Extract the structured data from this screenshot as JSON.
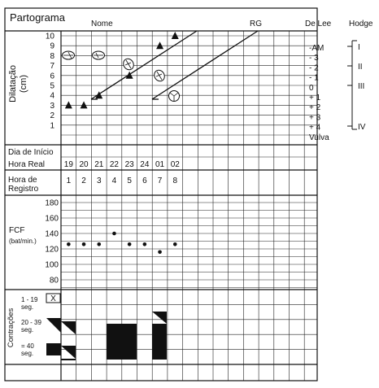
{
  "header": {
    "title": "Partograma",
    "nome_label": "Nome",
    "rg_label": "RG",
    "delee_label": "De Lee",
    "hodge_label": "Hodge"
  },
  "dilatation": {
    "axis_label_line1": "Dilatação",
    "axis_label_line2": "(cm)",
    "ticks": [
      "10",
      "9",
      "8",
      "7",
      "6",
      "5",
      "4",
      "3",
      "2",
      "1"
    ]
  },
  "delee_scale": [
    "-AM",
    "- 3",
    "- 2",
    "- 1",
    "0",
    "+ 1",
    "+ 2",
    "+ 3",
    "+ 4",
    "Vulva"
  ],
  "hodge_scale": [
    "I",
    "II",
    "III",
    "IV"
  ],
  "rows": {
    "dia_inicio_label": "Dia de Início",
    "hora_real_label": "Hora Real",
    "hora_real_values": [
      "19",
      "20",
      "21",
      "22",
      "23",
      "24",
      "01",
      "02"
    ],
    "hora_registro_label_line1": "Hora de",
    "hora_registro_label_line2": "Registro",
    "hora_registro_values": [
      "1",
      "2",
      "3",
      "4",
      "5",
      "6",
      "7",
      "8"
    ]
  },
  "fcf": {
    "label": "FCF",
    "unit": "(bat/min.)",
    "ticks": [
      "180",
      "160",
      "140",
      "120",
      "100",
      "80"
    ]
  },
  "contractions": {
    "axis_label": "Contrações",
    "legend_1_line1": "1 - 19",
    "legend_1_line2": "seg.",
    "legend_1_mark": "X",
    "legend_2_line1": "20 - 39",
    "legend_2_line2": "seg.",
    "legend_3_line1": "= 40",
    "legend_3_line2": "seg."
  },
  "chart_data": {
    "type": "scatter",
    "x_hora_registro": [
      1,
      2,
      3,
      4,
      5,
      6,
      7,
      8
    ],
    "dilatacao_triangles": [
      {
        "hora": 1,
        "cm": 3
      },
      {
        "hora": 2,
        "cm": 3
      },
      {
        "hora": 3,
        "cm": 4
      },
      {
        "hora": 5,
        "cm": 6
      },
      {
        "hora": 7,
        "cm": 9
      },
      {
        "hora": 8,
        "cm": 10
      }
    ],
    "fcf_points": [
      {
        "hora": 1,
        "bpm": 126
      },
      {
        "hora": 2,
        "bpm": 126
      },
      {
        "hora": 3,
        "bpm": 126
      },
      {
        "hora": 4,
        "bpm": 140
      },
      {
        "hora": 5,
        "bpm": 126
      },
      {
        "hora": 6,
        "bpm": 126
      },
      {
        "hora": 7,
        "bpm": 116
      },
      {
        "hora": 8,
        "bpm": 126
      }
    ],
    "fcf_ylim": [
      80,
      180
    ],
    "dilatacao_ylim": [
      1,
      10
    ]
  }
}
